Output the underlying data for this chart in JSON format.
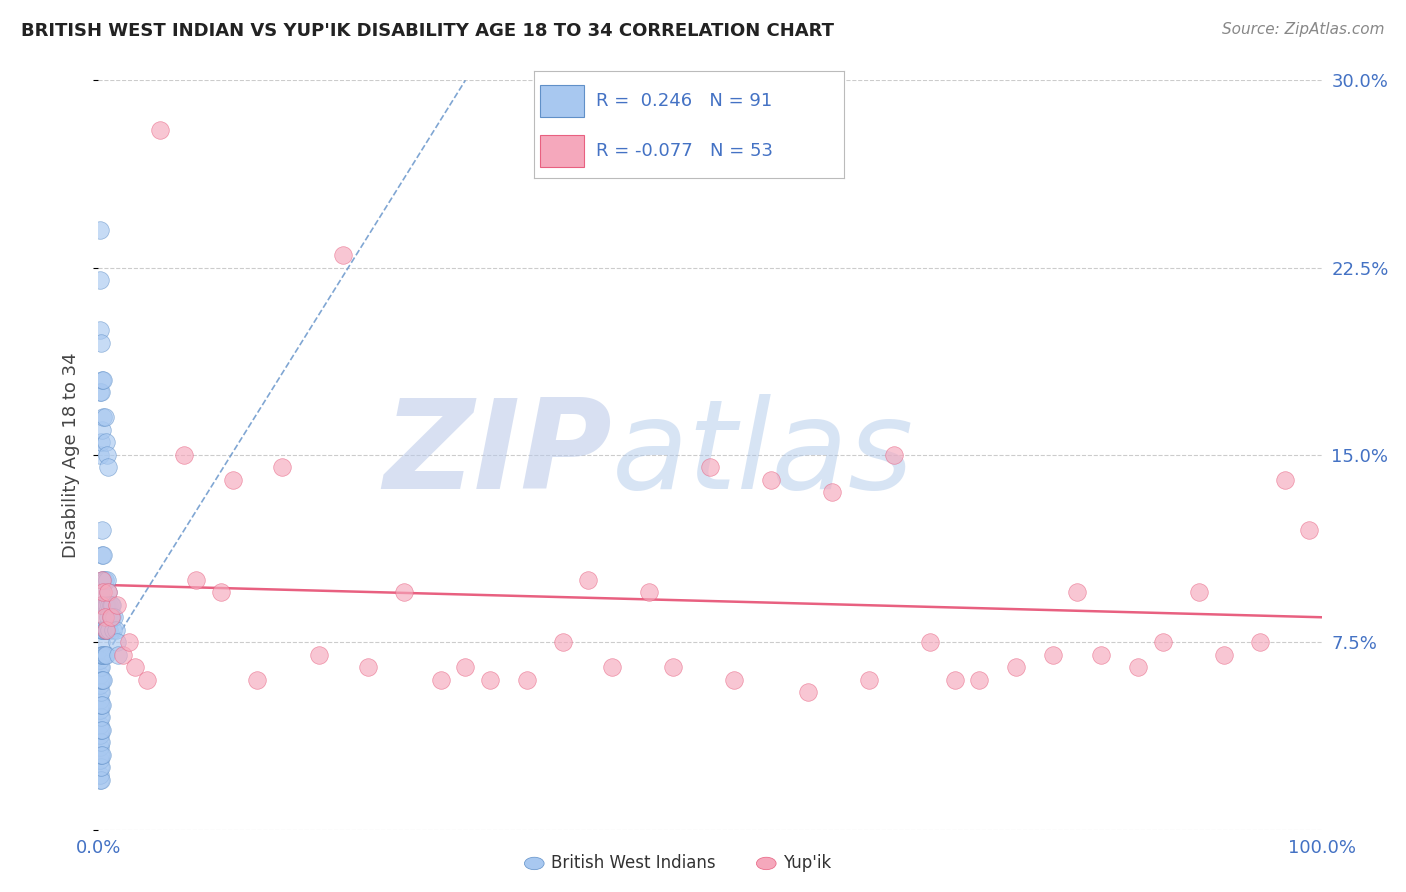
{
  "title": "BRITISH WEST INDIAN VS YUP'IK DISABILITY AGE 18 TO 34 CORRELATION CHART",
  "source": "Source: ZipAtlas.com",
  "ylabel": "Disability Age 18 to 34",
  "xlim": [
    0.0,
    1.0
  ],
  "ylim": [
    0.0,
    0.3
  ],
  "xticks": [
    0.0,
    1.0
  ],
  "xtick_labels": [
    "0.0%",
    "100.0%"
  ],
  "yticks": [
    0.0,
    0.075,
    0.15,
    0.225,
    0.3
  ],
  "ytick_labels": [
    "",
    "7.5%",
    "15.0%",
    "22.5%",
    "30.0%"
  ],
  "blue_R": 0.246,
  "blue_N": 91,
  "pink_R": -0.077,
  "pink_N": 53,
  "blue_color": "#A8C8F0",
  "pink_color": "#F5A8BC",
  "blue_line_color": "#6090C8",
  "pink_line_color": "#E86080",
  "watermark_zip_color": "#B8C8E8",
  "watermark_atlas_color": "#A8C4E8",
  "background_color": "#FFFFFF",
  "grid_color": "#CCCCCC",
  "blue_x": [
    0.001,
    0.001,
    0.001,
    0.001,
    0.001,
    0.001,
    0.001,
    0.001,
    0.001,
    0.001,
    0.001,
    0.001,
    0.001,
    0.001,
    0.001,
    0.001,
    0.001,
    0.001,
    0.001,
    0.001,
    0.002,
    0.002,
    0.002,
    0.002,
    0.002,
    0.002,
    0.002,
    0.002,
    0.002,
    0.002,
    0.002,
    0.002,
    0.002,
    0.002,
    0.002,
    0.002,
    0.003,
    0.003,
    0.003,
    0.003,
    0.003,
    0.003,
    0.003,
    0.003,
    0.003,
    0.003,
    0.004,
    0.004,
    0.004,
    0.004,
    0.004,
    0.004,
    0.005,
    0.005,
    0.005,
    0.005,
    0.006,
    0.006,
    0.006,
    0.007,
    0.007,
    0.007,
    0.008,
    0.008,
    0.009,
    0.009,
    0.01,
    0.01,
    0.011,
    0.011,
    0.012,
    0.013,
    0.014,
    0.015,
    0.016,
    0.001,
    0.001,
    0.001,
    0.001,
    0.001,
    0.002,
    0.002,
    0.002,
    0.003,
    0.003,
    0.004,
    0.004,
    0.005,
    0.006,
    0.007,
    0.008
  ],
  "blue_y": [
    0.02,
    0.022,
    0.025,
    0.028,
    0.03,
    0.033,
    0.035,
    0.038,
    0.04,
    0.042,
    0.045,
    0.048,
    0.05,
    0.052,
    0.055,
    0.058,
    0.06,
    0.062,
    0.065,
    0.068,
    0.02,
    0.025,
    0.03,
    0.035,
    0.04,
    0.045,
    0.05,
    0.055,
    0.06,
    0.065,
    0.07,
    0.075,
    0.08,
    0.085,
    0.09,
    0.095,
    0.03,
    0.04,
    0.05,
    0.06,
    0.07,
    0.08,
    0.09,
    0.1,
    0.11,
    0.12,
    0.06,
    0.07,
    0.08,
    0.09,
    0.1,
    0.11,
    0.07,
    0.08,
    0.09,
    0.1,
    0.07,
    0.08,
    0.09,
    0.08,
    0.09,
    0.1,
    0.085,
    0.095,
    0.08,
    0.09,
    0.085,
    0.09,
    0.085,
    0.09,
    0.08,
    0.085,
    0.08,
    0.075,
    0.07,
    0.15,
    0.175,
    0.2,
    0.22,
    0.24,
    0.155,
    0.175,
    0.195,
    0.16,
    0.18,
    0.165,
    0.18,
    0.165,
    0.155,
    0.15,
    0.145
  ],
  "pink_x": [
    0.002,
    0.003,
    0.004,
    0.005,
    0.006,
    0.008,
    0.01,
    0.015,
    0.02,
    0.025,
    0.03,
    0.04,
    0.05,
    0.07,
    0.08,
    0.1,
    0.11,
    0.13,
    0.15,
    0.18,
    0.2,
    0.22,
    0.25,
    0.28,
    0.3,
    0.32,
    0.35,
    0.38,
    0.4,
    0.42,
    0.45,
    0.47,
    0.5,
    0.52,
    0.55,
    0.58,
    0.6,
    0.63,
    0.65,
    0.68,
    0.7,
    0.72,
    0.75,
    0.78,
    0.8,
    0.82,
    0.85,
    0.87,
    0.9,
    0.92,
    0.95,
    0.97,
    0.99
  ],
  "pink_y": [
    0.09,
    0.1,
    0.095,
    0.085,
    0.08,
    0.095,
    0.085,
    0.09,
    0.07,
    0.075,
    0.065,
    0.06,
    0.28,
    0.15,
    0.1,
    0.095,
    0.14,
    0.06,
    0.145,
    0.07,
    0.23,
    0.065,
    0.095,
    0.06,
    0.065,
    0.06,
    0.06,
    0.075,
    0.1,
    0.065,
    0.095,
    0.065,
    0.145,
    0.06,
    0.14,
    0.055,
    0.135,
    0.06,
    0.15,
    0.075,
    0.06,
    0.06,
    0.065,
    0.07,
    0.095,
    0.07,
    0.065,
    0.075,
    0.095,
    0.07,
    0.075,
    0.14,
    0.12
  ]
}
